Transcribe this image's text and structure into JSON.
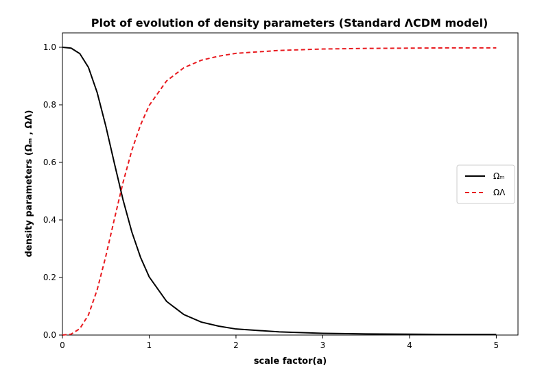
{
  "chart_data": {
    "type": "line",
    "title": "Plot of evolution of density parameters (Standard ΛCDM model)",
    "xlabel": "scale factor(a)",
    "ylabel": "density parameters (Ωₘ , ΩΛ)",
    "xlim": [
      0,
      5.25
    ],
    "ylim": [
      0,
      1.05
    ],
    "x_ticks": [
      0,
      1,
      2,
      3,
      4,
      5
    ],
    "y_ticks": [
      0.0,
      0.2,
      0.4,
      0.6,
      0.8,
      1.0
    ],
    "x_tick_labels": [
      "0",
      "1",
      "2",
      "3",
      "4",
      "5"
    ],
    "y_tick_labels": [
      "0.0",
      "0.2",
      "0.4",
      "0.6",
      "0.8",
      "1.0"
    ],
    "grid": false,
    "legend_position": "center-right",
    "series": [
      {
        "name": "Ωₘ",
        "color": "#000000",
        "style": "solid",
        "x": [
          0.0,
          0.1,
          0.2,
          0.3,
          0.4,
          0.5,
          0.6,
          0.7,
          0.8,
          0.9,
          1.0,
          1.2,
          1.4,
          1.6,
          1.8,
          2.0,
          2.5,
          3.0,
          3.5,
          4.0,
          4.5,
          5.0
        ],
        "y": [
          1.0,
          0.997,
          0.978,
          0.93,
          0.843,
          0.726,
          0.595,
          0.468,
          0.358,
          0.27,
          0.202,
          0.117,
          0.071,
          0.045,
          0.031,
          0.021,
          0.011,
          0.006,
          0.004,
          0.003,
          0.002,
          0.002
        ]
      },
      {
        "name": "ΩΛ",
        "color": "#e8191e",
        "style": "dashed",
        "x": [
          0.0,
          0.1,
          0.2,
          0.3,
          0.4,
          0.5,
          0.6,
          0.7,
          0.8,
          0.9,
          1.0,
          1.2,
          1.4,
          1.6,
          1.8,
          2.0,
          2.5,
          3.0,
          3.5,
          4.0,
          4.5,
          5.0
        ],
        "y": [
          0.0,
          0.003,
          0.022,
          0.07,
          0.157,
          0.274,
          0.405,
          0.532,
          0.642,
          0.73,
          0.798,
          0.883,
          0.929,
          0.955,
          0.969,
          0.979,
          0.989,
          0.994,
          0.996,
          0.997,
          0.998,
          0.998
        ]
      }
    ]
  }
}
